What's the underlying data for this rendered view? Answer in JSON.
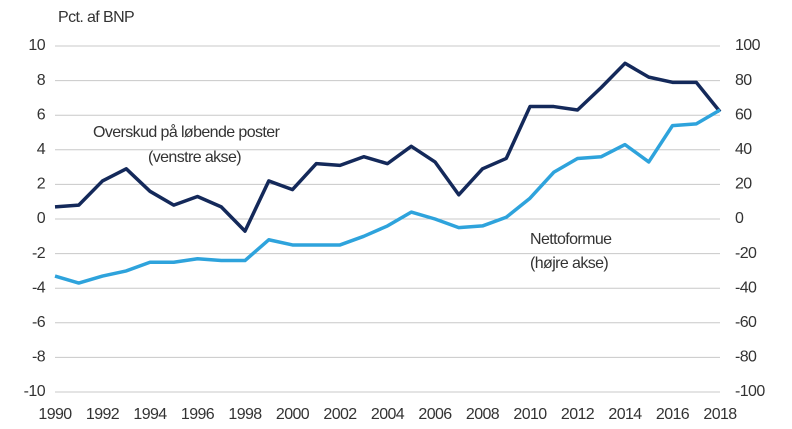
{
  "chart_data": {
    "type": "line",
    "title": "Pct. af BNP",
    "annotations": [
      "Overskud på løbende poster",
      "(venstre akse)",
      "Nettoformue",
      "(højre akse)"
    ],
    "x": [
      1990,
      1991,
      1992,
      1993,
      1994,
      1995,
      1996,
      1997,
      1998,
      1999,
      2000,
      2001,
      2002,
      2003,
      2004,
      2005,
      2006,
      2007,
      2008,
      2009,
      2010,
      2011,
      2012,
      2013,
      2014,
      2015,
      2016,
      2017,
      2018
    ],
    "series": [
      {
        "name": "Overskud på løbende poster",
        "color": "#14295a",
        "values": [
          0.7,
          0.8,
          2.2,
          2.9,
          1.6,
          0.8,
          1.3,
          0.7,
          -0.7,
          2.2,
          1.7,
          3.2,
          3.1,
          3.6,
          3.2,
          4.2,
          3.3,
          1.4,
          2.9,
          3.5,
          6.5,
          6.5,
          6.3,
          7.6,
          9.0,
          8.2,
          7.9,
          7.9,
          6.2
        ]
      },
      {
        "name": "Nettoformue",
        "color": "#2ea3dc",
        "axis": "y2",
        "values": [
          -33,
          -37,
          -33,
          -30,
          -25,
          -25,
          -23,
          -24,
          -24,
          -12,
          -15,
          -15,
          -15,
          -10,
          -4,
          4,
          0,
          -5,
          -4,
          1,
          12,
          27,
          35,
          36,
          43,
          33,
          54,
          55,
          63
        ]
      }
    ],
    "xlim": [
      1990,
      2018
    ],
    "xticks": [
      1990,
      1992,
      1994,
      1996,
      1998,
      2000,
      2002,
      2004,
      2006,
      2008,
      2010,
      2012,
      2014,
      2016,
      2018
    ],
    "ylim": [
      -10,
      10
    ],
    "yticks": [
      -10,
      -8,
      -6,
      -4,
      -2,
      0,
      2,
      4,
      6,
      8,
      10
    ],
    "y2lim": [
      -100,
      100
    ],
    "y2ticks": [
      -100,
      -80,
      -60,
      -40,
      -20,
      0,
      20,
      40,
      60,
      80,
      100
    ],
    "grid": true
  }
}
